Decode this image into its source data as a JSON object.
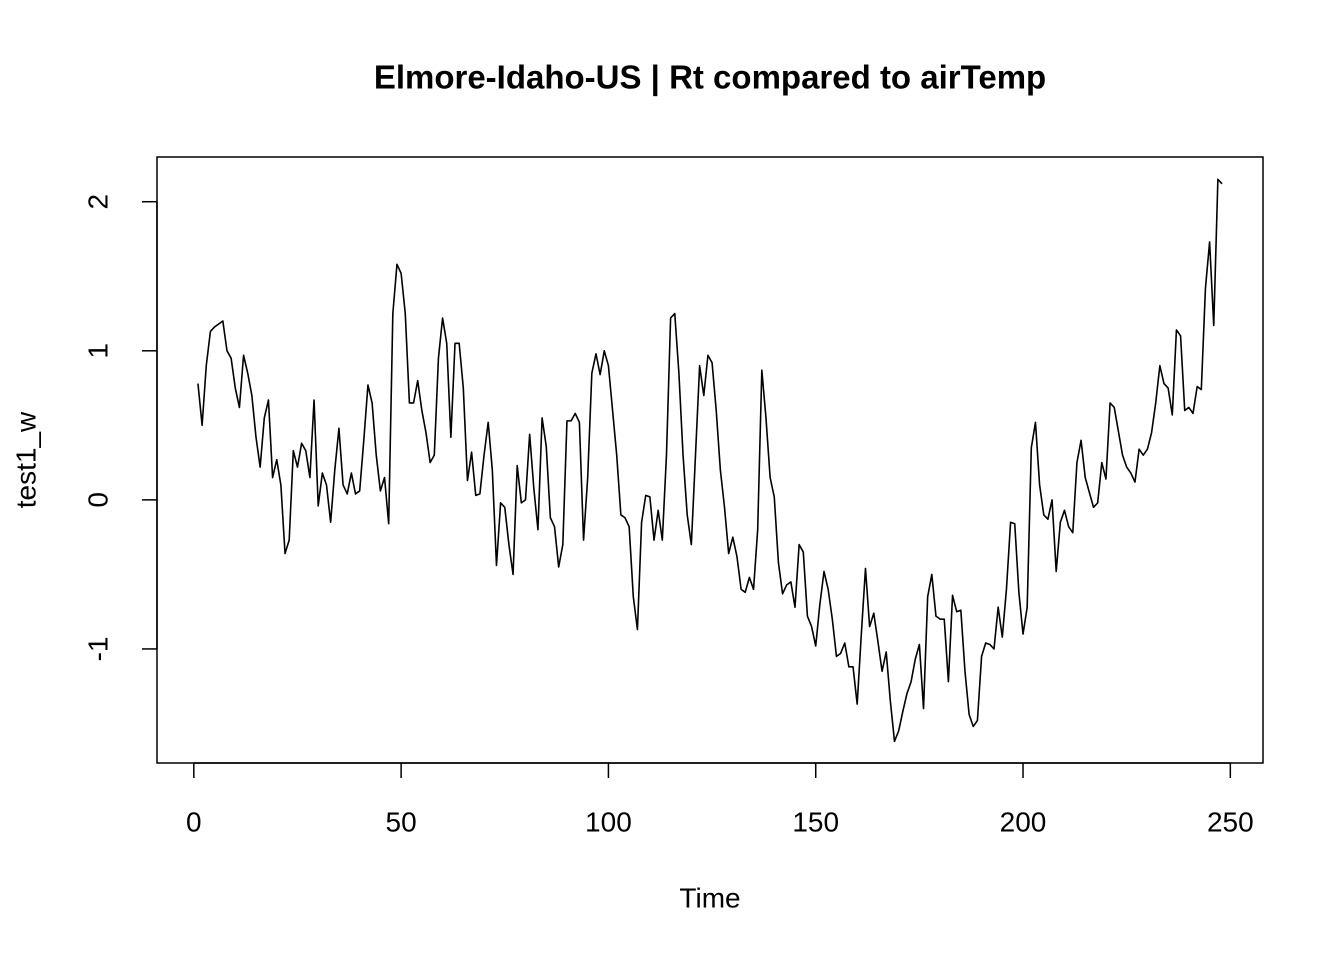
{
  "chart_data": {
    "type": "line",
    "title": "Elmore-Idaho-US | Rt compared to airTemp",
    "xlabel": "Time",
    "ylabel": "test1_w",
    "color": "#000000",
    "xlim": [
      -8.88,
      257.88
    ],
    "ylim": [
      -1.765,
      2.3
    ],
    "xticks": [
      0,
      50,
      100,
      150,
      200,
      250
    ],
    "yticks": [
      -1,
      0,
      1,
      2
    ],
    "x": [
      1,
      2,
      3,
      4,
      5,
      6,
      7,
      8,
      9,
      10,
      11,
      12,
      13,
      14,
      15,
      16,
      17,
      18,
      19,
      20,
      21,
      22,
      23,
      24,
      25,
      26,
      27,
      28,
      29,
      30,
      31,
      32,
      33,
      34,
      35,
      36,
      37,
      38,
      39,
      40,
      41,
      42,
      43,
      44,
      45,
      46,
      47,
      48,
      49,
      50,
      51,
      52,
      53,
      54,
      55,
      56,
      57,
      58,
      59,
      60,
      61,
      62,
      63,
      64,
      65,
      66,
      67,
      68,
      69,
      70,
      71,
      72,
      73,
      74,
      75,
      76,
      77,
      78,
      79,
      80,
      81,
      82,
      83,
      84,
      85,
      86,
      87,
      88,
      89,
      90,
      91,
      92,
      93,
      94,
      95,
      96,
      97,
      98,
      99,
      100,
      101,
      102,
      103,
      104,
      105,
      106,
      107,
      108,
      109,
      110,
      111,
      112,
      113,
      114,
      115,
      116,
      117,
      118,
      119,
      120,
      121,
      122,
      123,
      124,
      125,
      126,
      127,
      128,
      129,
      130,
      131,
      132,
      133,
      134,
      135,
      136,
      137,
      138,
      139,
      140,
      141,
      142,
      143,
      144,
      145,
      146,
      147,
      148,
      149,
      150,
      151,
      152,
      153,
      154,
      155,
      156,
      157,
      158,
      159,
      160,
      161,
      162,
      163,
      164,
      165,
      166,
      167,
      168,
      169,
      170,
      171,
      172,
      173,
      174,
      175,
      176,
      177,
      178,
      179,
      180,
      181,
      182,
      183,
      184,
      185,
      186,
      187,
      188,
      189,
      190,
      191,
      192,
      193,
      194,
      195,
      196,
      197,
      198,
      199,
      200,
      201,
      202,
      203,
      204,
      205,
      206,
      207,
      208,
      209,
      210,
      211,
      212,
      213,
      214,
      215,
      216,
      217,
      218,
      219,
      220,
      221,
      222,
      223,
      224,
      225,
      226,
      227,
      228,
      229,
      230,
      231,
      232,
      233,
      234,
      235,
      236,
      237,
      238,
      239,
      240,
      241,
      242,
      243,
      244,
      245,
      246,
      247,
      248
    ],
    "values": [
      0.78,
      0.5,
      0.9,
      1.13,
      1.16,
      1.18,
      1.2,
      1.0,
      0.95,
      0.75,
      0.62,
      0.97,
      0.85,
      0.7,
      0.42,
      0.22,
      0.55,
      0.67,
      0.15,
      0.27,
      0.1,
      -0.36,
      -0.27,
      0.33,
      0.22,
      0.38,
      0.33,
      0.15,
      0.67,
      -0.04,
      0.18,
      0.1,
      -0.15,
      0.2,
      0.48,
      0.1,
      0.04,
      0.18,
      0.04,
      0.06,
      0.4,
      0.77,
      0.65,
      0.3,
      0.06,
      0.15,
      -0.16,
      1.25,
      1.58,
      1.52,
      1.25,
      0.65,
      0.65,
      0.8,
      0.6,
      0.45,
      0.25,
      0.3,
      0.95,
      1.22,
      1.05,
      0.42,
      1.05,
      1.05,
      0.75,
      0.13,
      0.32,
      0.03,
      0.04,
      0.3,
      0.52,
      0.2,
      -0.44,
      -0.02,
      -0.05,
      -0.3,
      -0.5,
      0.23,
      -0.02,
      0.0,
      0.44,
      0.08,
      -0.2,
      0.55,
      0.36,
      -0.12,
      -0.18,
      -0.45,
      -0.3,
      0.53,
      0.53,
      0.58,
      0.52,
      -0.27,
      0.15,
      0.85,
      0.98,
      0.84,
      1.0,
      0.9,
      0.6,
      0.3,
      -0.1,
      -0.12,
      -0.18,
      -0.65,
      -0.87,
      -0.15,
      0.03,
      0.02,
      -0.27,
      -0.07,
      -0.27,
      0.3,
      1.22,
      1.25,
      0.85,
      0.3,
      -0.1,
      -0.3,
      0.3,
      0.9,
      0.7,
      0.97,
      0.92,
      0.6,
      0.2,
      -0.05,
      -0.36,
      -0.25,
      -0.38,
      -0.6,
      -0.62,
      -0.52,
      -0.6,
      -0.2,
      0.87,
      0.55,
      0.15,
      0.02,
      -0.42,
      -0.63,
      -0.57,
      -0.55,
      -0.72,
      -0.3,
      -0.35,
      -0.78,
      -0.85,
      -0.98,
      -0.7,
      -0.48,
      -0.6,
      -0.8,
      -1.05,
      -1.03,
      -0.96,
      -1.12,
      -1.12,
      -1.37,
      -0.9,
      -0.46,
      -0.85,
      -0.76,
      -0.95,
      -1.15,
      -1.02,
      -1.35,
      -1.62,
      -1.55,
      -1.42,
      -1.3,
      -1.22,
      -1.07,
      -0.97,
      -1.4,
      -0.65,
      -0.5,
      -0.78,
      -0.8,
      -0.8,
      -1.22,
      -0.64,
      -0.75,
      -0.74,
      -1.15,
      -1.44,
      -1.52,
      -1.48,
      -1.05,
      -0.96,
      -0.97,
      -1.0,
      -0.72,
      -0.92,
      -0.6,
      -0.15,
      -0.16,
      -0.62,
      -0.9,
      -0.72,
      0.35,
      0.52,
      0.1,
      -0.1,
      -0.13,
      0.0,
      -0.48,
      -0.15,
      -0.07,
      -0.18,
      -0.22,
      0.25,
      0.4,
      0.15,
      0.05,
      -0.05,
      -0.02,
      0.25,
      0.14,
      0.65,
      0.62,
      0.46,
      0.3,
      0.22,
      0.18,
      0.12,
      0.34,
      0.3,
      0.34,
      0.45,
      0.65,
      0.9,
      0.78,
      0.75,
      0.57,
      1.14,
      1.1,
      0.6,
      0.62,
      0.58,
      0.76,
      0.74,
      1.42,
      1.73,
      1.17,
      2.15,
      2.12
    ]
  }
}
